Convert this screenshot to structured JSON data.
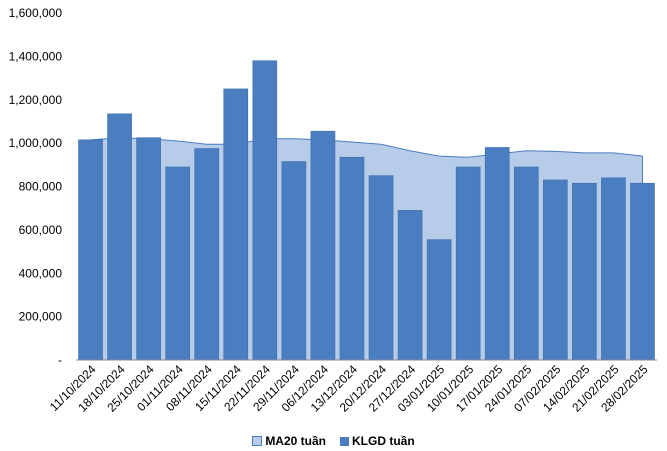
{
  "chart_data": {
    "type": "bar",
    "categories": [
      "11/10/2024",
      "18/10/2024",
      "25/10/2024",
      "01/11/2024",
      "08/11/2024",
      "15/11/2024",
      "22/11/2024",
      "29/11/2024",
      "06/12/2024",
      "13/12/2024",
      "20/12/2024",
      "27/12/2024",
      "03/01/2025",
      "10/01/2025",
      "17/01/2025",
      "24/01/2025",
      "07/02/2025",
      "14/02/2025",
      "21/02/2025",
      "28/02/2025"
    ],
    "series": [
      {
        "name": "MA20 tuần",
        "kind": "area",
        "color": "#b7cce8",
        "values": [
          1015000,
          1025000,
          1020000,
          1010000,
          995000,
          995000,
          1020000,
          1020000,
          1015000,
          1005000,
          995000,
          965000,
          940000,
          935000,
          950000,
          965000,
          962000,
          955000,
          955000,
          940000
        ]
      },
      {
        "name": "KLGD tuần",
        "kind": "bar",
        "color": "#4a7ec0",
        "values": [
          1015000,
          1135000,
          1025000,
          890000,
          975000,
          1250000,
          1380000,
          915000,
          1055000,
          935000,
          850000,
          690000,
          555000,
          890000,
          980000,
          890000,
          830000,
          815000,
          840000,
          815000
        ]
      }
    ],
    "y_ticks": [
      "-",
      "200,000",
      "400,000",
      "600,000",
      "800,000",
      "1,000,000",
      "1,200,000",
      "1,400,000",
      "1,600,000"
    ],
    "ylim": [
      0,
      1600000
    ],
    "grid": false,
    "legend_position": "bottom"
  }
}
